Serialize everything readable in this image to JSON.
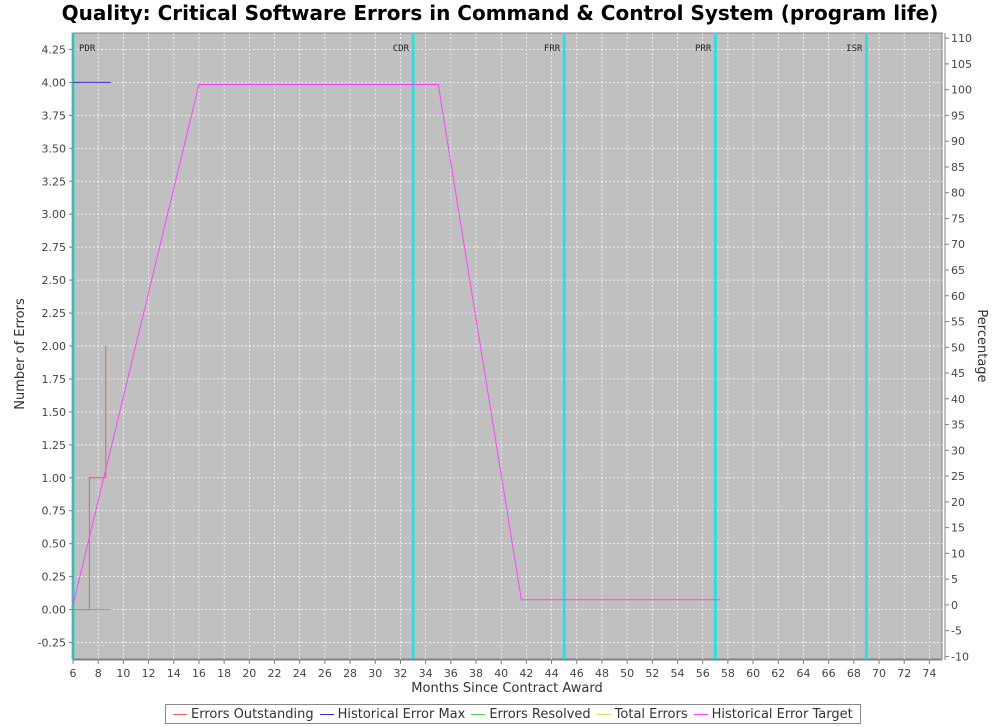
{
  "chart_data": {
    "type": "line",
    "title": "Quality: Critical Software Errors in Command & Control System (program life)",
    "xlabel": "Months Since Contract Award",
    "ylabel": "Number of Errors",
    "y2label": "Percentage",
    "xlim": [
      6,
      75
    ],
    "ylim": [
      -0.375,
      4.375
    ],
    "y2lim": [
      -10.5,
      111
    ],
    "x_ticks": [
      6,
      8,
      10,
      12,
      14,
      16,
      18,
      20,
      22,
      24,
      26,
      28,
      30,
      32,
      34,
      36,
      38,
      40,
      42,
      44,
      46,
      48,
      50,
      52,
      54,
      56,
      58,
      60,
      62,
      64,
      66,
      68,
      70,
      72,
      74
    ],
    "y_ticks": [
      "-0.25",
      "0.00",
      "0.25",
      "0.50",
      "0.75",
      "1.00",
      "1.25",
      "1.50",
      "1.75",
      "2.00",
      "2.25",
      "2.50",
      "2.75",
      "3.00",
      "3.25",
      "3.50",
      "3.75",
      "4.00",
      "4.25"
    ],
    "y2_ticks": [
      -10,
      -5,
      0,
      5,
      10,
      15,
      20,
      25,
      30,
      35,
      40,
      45,
      50,
      55,
      60,
      65,
      70,
      75,
      80,
      85,
      90,
      95,
      100,
      105,
      110
    ],
    "grid": true,
    "legend_position": "bottom",
    "milestones": [
      {
        "label": "PDR",
        "x": 6
      },
      {
        "label": "CDR",
        "x": 33
      },
      {
        "label": "FRR",
        "x": 45
      },
      {
        "label": "PRR",
        "x": 57
      },
      {
        "label": "ISR",
        "x": 69
      }
    ],
    "series": [
      {
        "name": "Errors Outstanding",
        "axis": "left",
        "step": true,
        "color": "#ff5555",
        "x": [
          6,
          7.3,
          8.6,
          8.6
        ],
        "y": [
          0,
          1,
          1,
          2
        ]
      },
      {
        "name": "Historical Error Max",
        "axis": "left",
        "step": false,
        "color": "#3333cc",
        "x": [
          6,
          9
        ],
        "y": [
          4,
          4
        ]
      },
      {
        "name": "Errors Resolved",
        "axis": "left",
        "step": false,
        "color": "#55cc55",
        "x": [
          6,
          9
        ],
        "y": [
          0,
          0
        ]
      },
      {
        "name": "Total Errors",
        "axis": "left",
        "step": false,
        "color": "#e0e055",
        "x": [],
        "y": []
      },
      {
        "name": "Historical Error Target",
        "axis": "right",
        "step": false,
        "color": "#ff44ff",
        "x": [
          6,
          16,
          35,
          41.6,
          57.4
        ],
        "y": [
          0,
          101,
          101,
          1,
          1
        ]
      }
    ]
  }
}
